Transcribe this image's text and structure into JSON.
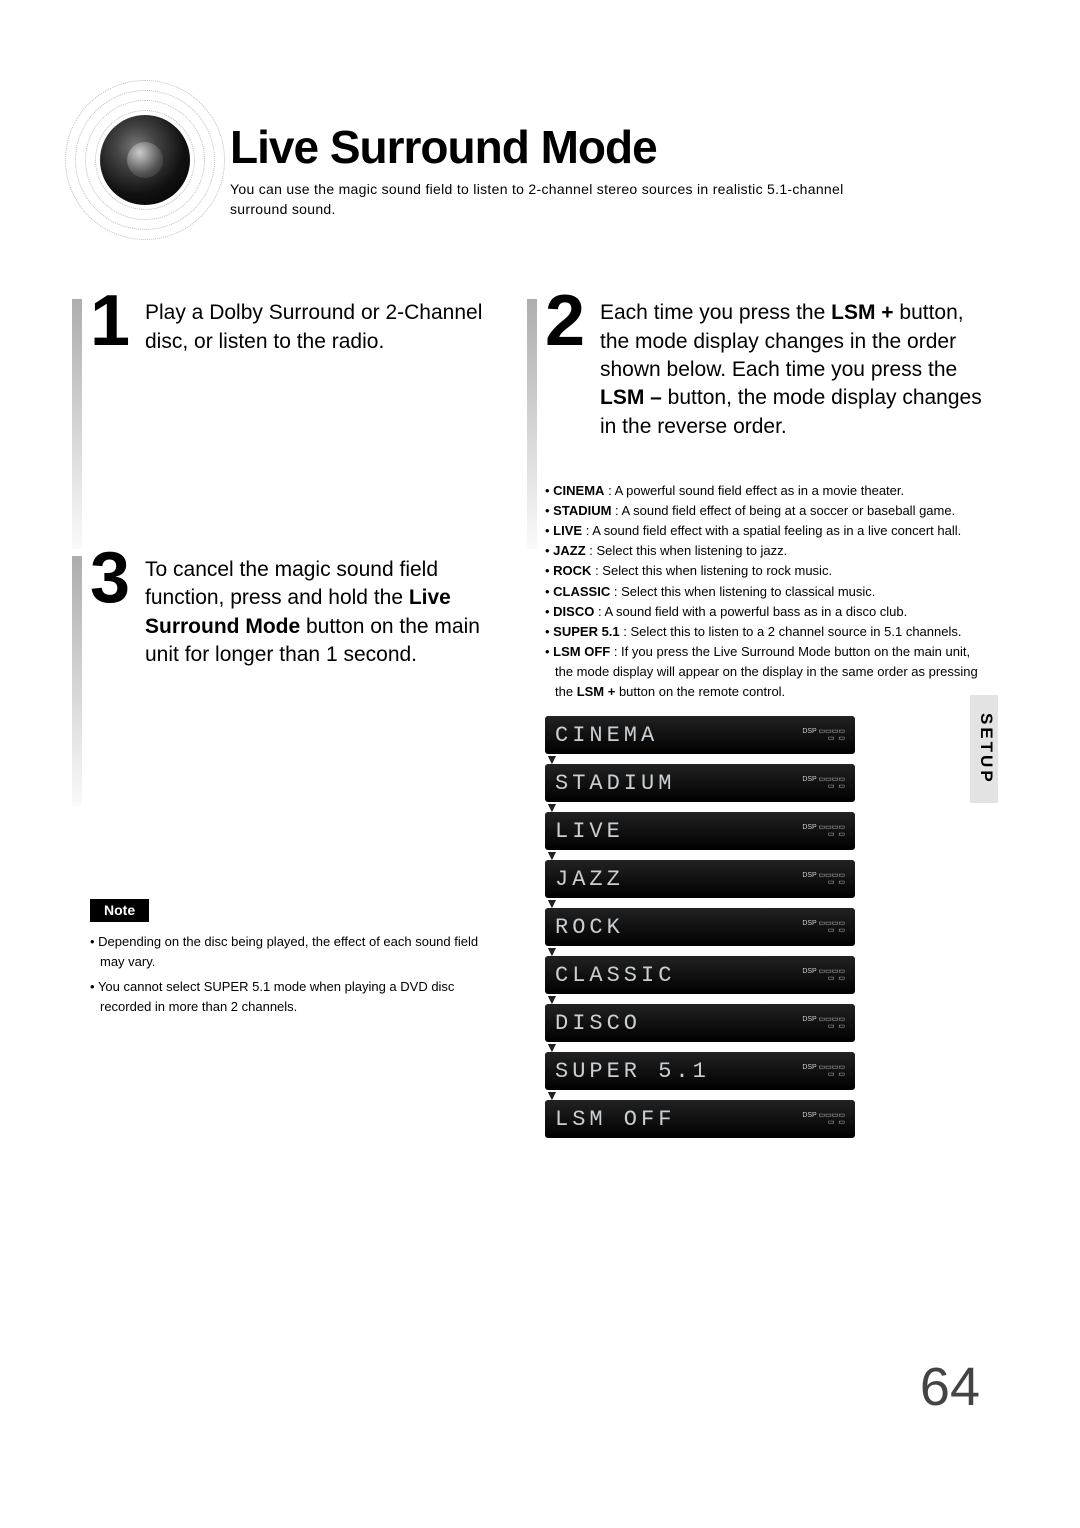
{
  "header": {
    "title": "Live Surround Mode",
    "subtitle": "You can use the magic sound field to listen to 2-channel stereo sources in realistic 5.1-channel surround sound."
  },
  "steps": {
    "s1": {
      "num": "1",
      "text": "Play a Dolby Surround or 2-Channel disc, or listen to the radio."
    },
    "s2": {
      "num": "2",
      "parts": {
        "a": "Each time you press the ",
        "b": "LSM +",
        "c": " button, the mode display changes in the order shown below. Each time you press the ",
        "d": "LSM –",
        "e": " button, the mode display changes in the reverse order."
      }
    },
    "s3": {
      "num": "3",
      "parts": {
        "a": "To cancel the magic sound field function, press and hold the ",
        "b": "Live Surround Mode",
        "c": " button on the main unit for longer than 1 second."
      }
    }
  },
  "modes": [
    {
      "name": "CINEMA",
      "desc": " : A powerful sound field effect as in a movie theater."
    },
    {
      "name": "STADIUM",
      "desc": " : A sound field effect of being at a soccer or baseball game."
    },
    {
      "name": "LIVE",
      "desc": " : A sound field effect with a spatial feeling as in a live concert hall."
    },
    {
      "name": "JAZZ",
      "desc": " : Select this when listening to jazz."
    },
    {
      "name": "ROCK",
      "desc": " : Select this when listening to rock music."
    },
    {
      "name": "CLASSIC",
      "desc": " : Select this when listening to classical music."
    },
    {
      "name": "DISCO",
      "desc": " : A sound field with a powerful bass as in a disco club."
    },
    {
      "name": "SUPER 5.1",
      "desc": " : Select this to listen to a 2 channel source in 5.1 channels."
    },
    {
      "name": "LSM OFF",
      "desc_parts": {
        "a": " : If you press the Live Surround Mode button on the main unit, the mode display will appear on the display in the same order as pressing the ",
        "b": "LSM +",
        "c": " button on the remote control."
      }
    }
  ],
  "displays": [
    "CINEMA",
    "STADIUM",
    "LIVE",
    "JAZZ",
    "ROCK",
    "CLASSIC",
    "DISCO",
    "SUPER 5.1",
    "LSM OFF"
  ],
  "display_icons": "DSP  ▭ ▭ ▭ ▭\n▭    ▭",
  "note": {
    "label": "Note",
    "items": [
      "Depending on the disc being played, the effect of each sound field may vary.",
      "You cannot select SUPER 5.1 mode when playing a DVD disc recorded in more than 2 channels."
    ]
  },
  "side_tab": "SETUP",
  "page_number": "64",
  "colors": {
    "display_bg": "#000000",
    "display_text": "#c9cfd3",
    "tab_bg": "#e3e3e3"
  }
}
